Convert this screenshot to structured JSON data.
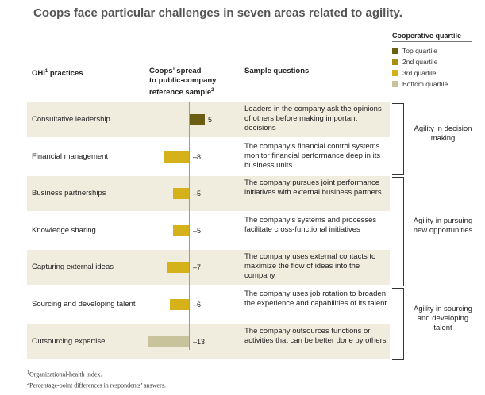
{
  "title": "Coops face particular challenges in seven areas related to agility.",
  "legend": {
    "title": "Cooperative quartile",
    "items": [
      {
        "label": "Top quartile",
        "color": "#6b5d12"
      },
      {
        "label": "2nd quartile",
        "color": "#a98e12"
      },
      {
        "label": "3rd quartile",
        "color": "#d6b21a"
      },
      {
        "label": "Bottom quartile",
        "color": "#c9c39b"
      }
    ]
  },
  "headers": {
    "practices": "OHI",
    "practices_sup": "1",
    "practices_suffix": " practices",
    "spread_line1": "Coops’ spread",
    "spread_line2": "to public-company",
    "spread_line3": "reference sample",
    "spread_sup": "2",
    "questions": "Sample questions"
  },
  "chart_data": {
    "type": "bar",
    "categories": [
      "Consultative leadership",
      "Financial management",
      "Business partnerships",
      "Knowledge sharing",
      "Capturing external ideas",
      "Sourcing and developing talent",
      "Outsourcing expertise"
    ],
    "values": [
      5,
      -8,
      -5,
      -5,
      -7,
      -6,
      -13
    ],
    "value_labels": [
      "5",
      "–8",
      "–5",
      "–5",
      "–7",
      "–6",
      "–13"
    ],
    "quartiles": [
      "Top quartile",
      "3rd quartile",
      "3rd quartile",
      "3rd quartile",
      "3rd quartile",
      "3rd quartile",
      "Bottom quartile"
    ],
    "colors": [
      "#6b5d12",
      "#d6b21a",
      "#d6b21a",
      "#d6b21a",
      "#d6b21a",
      "#d6b21a",
      "#c9c39b"
    ],
    "questions": [
      "Leaders in the company ask the opinions of others before making important decisions",
      "The company’s financial control systems monitor financial performance deep in its business units",
      "The company pursues joint performance initiatives with external business partners",
      "The company’s systems and processes facilitate cross-functional initiatives",
      "The company uses external contacts to maximize the flow of ideas into the company",
      "The company uses job rotation to broaden the experience and capabilities of its talent",
      "The company outsources functions or activities that can be better done by others"
    ],
    "groups": [
      {
        "label": "Agility in decision making",
        "rows": [
          0,
          1
        ]
      },
      {
        "label": "Agility in pursuing new opportunities",
        "rows": [
          2,
          3,
          4
        ]
      },
      {
        "label": "Agility in sourcing and developing talent",
        "rows": [
          5,
          6
        ]
      }
    ]
  },
  "footnotes": [
    {
      "mark": "1",
      "text": "Organizational-health index."
    },
    {
      "mark": "2",
      "text": "Percentage-point differences in respondents’ answers."
    }
  ]
}
